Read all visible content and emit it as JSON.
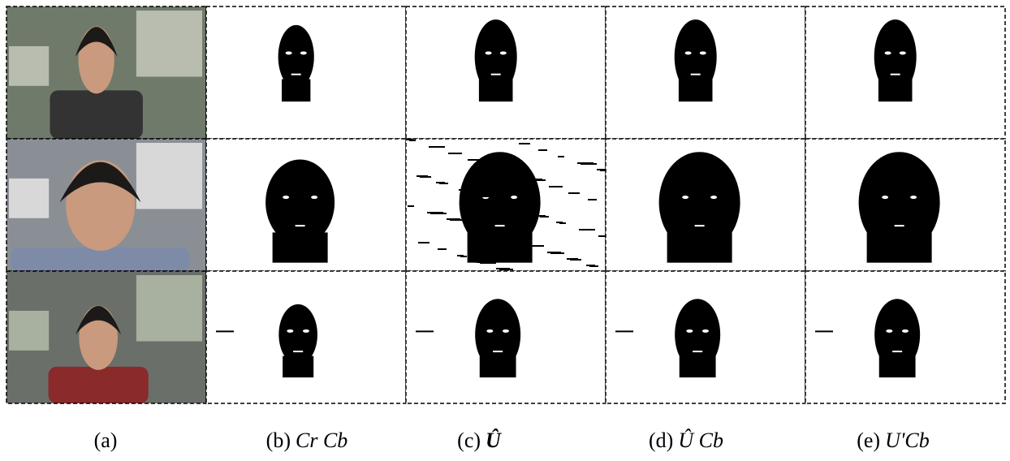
{
  "captions": [
    {
      "label": "(a)"
    },
    {
      "label": "(b)",
      "expr": "Cr Cb"
    },
    {
      "label": "(c)",
      "expr": "Û"
    },
    {
      "label": "(d)",
      "expr": "Û Cb"
    },
    {
      "label": "(e)",
      "expr": "U'Cb"
    }
  ]
}
